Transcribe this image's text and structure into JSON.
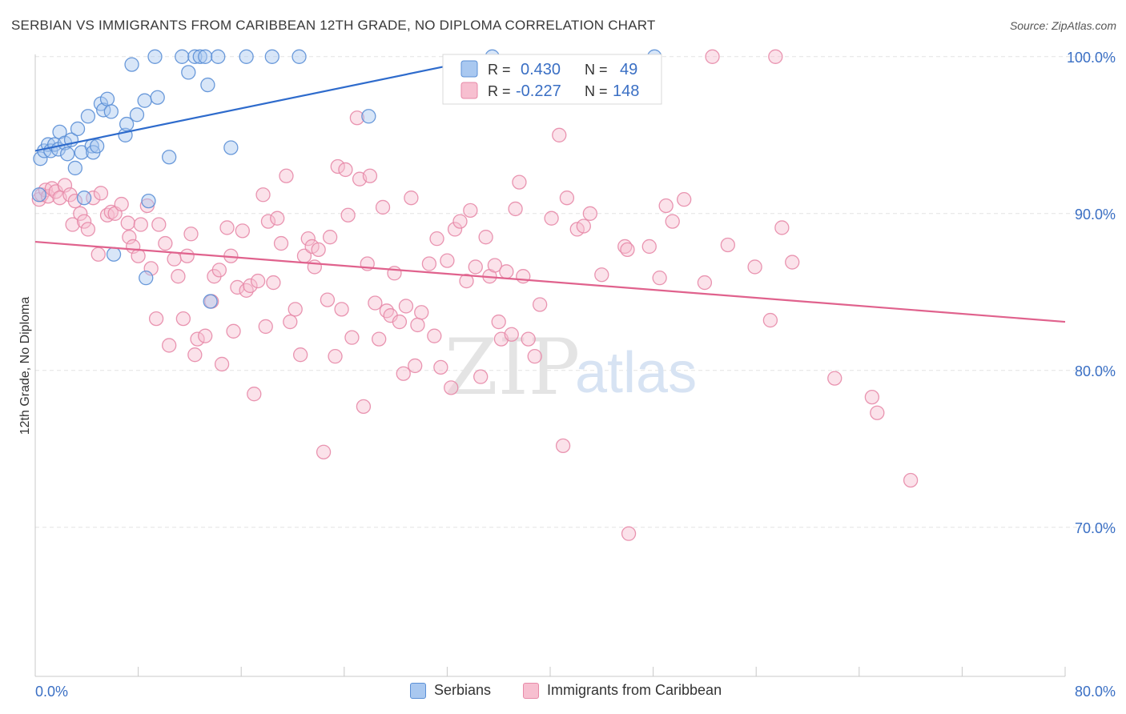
{
  "title": "SERBIAN VS IMMIGRANTS FROM CARIBBEAN 12TH GRADE, NO DIPLOMA CORRELATION CHART",
  "source": "Source: ZipAtlas.com",
  "watermark": {
    "zip": "ZIP",
    "atlas": "atlas"
  },
  "colors": {
    "serbians_fill": "#a9c8f0",
    "serbians_stroke": "#5b8fd6",
    "serbians_line": "#2e6bcc",
    "caribbean_fill": "#f7bfd0",
    "caribbean_stroke": "#e78aa8",
    "caribbean_line": "#e0628d",
    "value_text": "#3a6fc4",
    "grid": "#e3e3e3"
  },
  "legend_top": {
    "rows": [
      {
        "r_label": "R =",
        "r_value": "0.430",
        "n_label": "N =",
        "n_value": "49"
      },
      {
        "r_label": "R =",
        "r_value": "-0.227",
        "n_label": "N =",
        "n_value": "148"
      }
    ]
  },
  "legend_bottom": {
    "items": [
      "Serbians",
      "Immigrants from Caribbean"
    ]
  },
  "chart_data": {
    "type": "scatter",
    "title": "SERBIAN VS IMMIGRANTS FROM CARIBBEAN 12TH GRADE, NO DIPLOMA CORRELATION CHART",
    "xlabel": "",
    "ylabel": "12th Grade, No Diploma",
    "xlim": [
      0,
      80
    ],
    "ylim": [
      60.5,
      100.5
    ],
    "x_tick_labels": [
      "0.0%",
      "80.0%"
    ],
    "y_ticks": [
      70,
      80,
      90,
      100
    ],
    "y_tick_labels": [
      "70.0%",
      "80.0%",
      "90.0%",
      "100.0%"
    ],
    "grid": true,
    "legend_position": "top-center",
    "series": [
      {
        "name": "Serbians",
        "r": 0.43,
        "n": 49,
        "trend": {
          "x": [
            0,
            35.5
          ],
          "y": [
            94.0,
            100.0
          ]
        },
        "points": [
          {
            "x": 0.4,
            "y": 93.5
          },
          {
            "x": 0.7,
            "y": 94.0
          },
          {
            "x": 1.0,
            "y": 94.4
          },
          {
            "x": 1.2,
            "y": 94.0
          },
          {
            "x": 1.5,
            "y": 94.4
          },
          {
            "x": 1.8,
            "y": 94.1
          },
          {
            "x": 1.9,
            "y": 95.2
          },
          {
            "x": 2.3,
            "y": 94.5
          },
          {
            "x": 2.5,
            "y": 93.8
          },
          {
            "x": 2.8,
            "y": 94.7
          },
          {
            "x": 3.1,
            "y": 92.9
          },
          {
            "x": 3.3,
            "y": 95.4
          },
          {
            "x": 3.6,
            "y": 93.9
          },
          {
            "x": 4.1,
            "y": 96.2
          },
          {
            "x": 4.4,
            "y": 94.3
          },
          {
            "x": 4.5,
            "y": 93.9
          },
          {
            "x": 4.8,
            "y": 94.3
          },
          {
            "x": 5.1,
            "y": 97.0
          },
          {
            "x": 5.3,
            "y": 96.6
          },
          {
            "x": 5.6,
            "y": 97.3
          },
          {
            "x": 5.9,
            "y": 96.5
          },
          {
            "x": 6.1,
            "y": 87.4
          },
          {
            "x": 7.0,
            "y": 95.0
          },
          {
            "x": 7.1,
            "y": 95.7
          },
          {
            "x": 7.5,
            "y": 99.5
          },
          {
            "x": 7.9,
            "y": 96.3
          },
          {
            "x": 8.5,
            "y": 97.2
          },
          {
            "x": 8.6,
            "y": 85.9
          },
          {
            "x": 8.8,
            "y": 90.8
          },
          {
            "x": 9.5,
            "y": 97.4
          },
          {
            "x": 9.3,
            "y": 100.0
          },
          {
            "x": 10.4,
            "y": 93.6
          },
          {
            "x": 11.4,
            "y": 100.0
          },
          {
            "x": 11.9,
            "y": 99.0
          },
          {
            "x": 12.4,
            "y": 100.0
          },
          {
            "x": 12.8,
            "y": 100.0
          },
          {
            "x": 13.2,
            "y": 100.0
          },
          {
            "x": 13.6,
            "y": 84.4
          },
          {
            "x": 13.4,
            "y": 98.2
          },
          {
            "x": 14.2,
            "y": 100.0
          },
          {
            "x": 15.2,
            "y": 94.2
          },
          {
            "x": 16.4,
            "y": 100.0
          },
          {
            "x": 18.4,
            "y": 100.0
          },
          {
            "x": 20.5,
            "y": 100.0
          },
          {
            "x": 25.9,
            "y": 96.2
          },
          {
            "x": 35.5,
            "y": 100.0
          },
          {
            "x": 48.1,
            "y": 100.0
          },
          {
            "x": 0.3,
            "y": 91.2
          },
          {
            "x": 3.8,
            "y": 91.0
          }
        ]
      },
      {
        "name": "Immigrants from Caribbean",
        "r": -0.227,
        "n": 148,
        "trend": {
          "x": [
            0,
            80
          ],
          "y": [
            88.2,
            83.1
          ]
        },
        "points": [
          {
            "x": 0.3,
            "y": 90.9
          },
          {
            "x": 0.5,
            "y": 91.2
          },
          {
            "x": 0.8,
            "y": 91.5
          },
          {
            "x": 1.0,
            "y": 91.1
          },
          {
            "x": 1.3,
            "y": 91.6
          },
          {
            "x": 1.6,
            "y": 91.4
          },
          {
            "x": 1.9,
            "y": 91.0
          },
          {
            "x": 2.3,
            "y": 91.8
          },
          {
            "x": 2.7,
            "y": 91.2
          },
          {
            "x": 2.9,
            "y": 89.3
          },
          {
            "x": 3.1,
            "y": 90.8
          },
          {
            "x": 3.5,
            "y": 90.0
          },
          {
            "x": 3.8,
            "y": 89.5
          },
          {
            "x": 4.1,
            "y": 89.0
          },
          {
            "x": 4.5,
            "y": 91.0
          },
          {
            "x": 4.9,
            "y": 87.4
          },
          {
            "x": 5.1,
            "y": 91.3
          },
          {
            "x": 5.6,
            "y": 89.9
          },
          {
            "x": 5.9,
            "y": 90.1
          },
          {
            "x": 6.2,
            "y": 90.0
          },
          {
            "x": 6.7,
            "y": 90.6
          },
          {
            "x": 7.2,
            "y": 89.4
          },
          {
            "x": 7.3,
            "y": 88.5
          },
          {
            "x": 7.6,
            "y": 87.9
          },
          {
            "x": 8.0,
            "y": 87.3
          },
          {
            "x": 8.2,
            "y": 89.3
          },
          {
            "x": 8.7,
            "y": 90.5
          },
          {
            "x": 9.0,
            "y": 86.5
          },
          {
            "x": 9.4,
            "y": 83.3
          },
          {
            "x": 9.6,
            "y": 89.3
          },
          {
            "x": 10.1,
            "y": 88.1
          },
          {
            "x": 10.4,
            "y": 81.6
          },
          {
            "x": 10.8,
            "y": 87.1
          },
          {
            "x": 11.1,
            "y": 86.0
          },
          {
            "x": 11.5,
            "y": 83.3
          },
          {
            "x": 11.8,
            "y": 87.3
          },
          {
            "x": 12.1,
            "y": 88.7
          },
          {
            "x": 12.4,
            "y": 81.0
          },
          {
            "x": 12.6,
            "y": 82.0
          },
          {
            "x": 13.2,
            "y": 82.2
          },
          {
            "x": 13.7,
            "y": 84.4
          },
          {
            "x": 13.9,
            "y": 86.0
          },
          {
            "x": 14.3,
            "y": 86.4
          },
          {
            "x": 14.5,
            "y": 80.4
          },
          {
            "x": 14.9,
            "y": 89.1
          },
          {
            "x": 15.2,
            "y": 87.3
          },
          {
            "x": 15.4,
            "y": 82.5
          },
          {
            "x": 15.7,
            "y": 85.3
          },
          {
            "x": 16.1,
            "y": 88.9
          },
          {
            "x": 16.4,
            "y": 85.1
          },
          {
            "x": 16.7,
            "y": 85.4
          },
          {
            "x": 17.0,
            "y": 78.5
          },
          {
            "x": 17.3,
            "y": 85.7
          },
          {
            "x": 17.7,
            "y": 91.2
          },
          {
            "x": 17.9,
            "y": 82.8
          },
          {
            "x": 18.1,
            "y": 89.5
          },
          {
            "x": 18.5,
            "y": 85.6
          },
          {
            "x": 18.8,
            "y": 89.7
          },
          {
            "x": 19.1,
            "y": 88.1
          },
          {
            "x": 19.5,
            "y": 92.4
          },
          {
            "x": 19.8,
            "y": 83.1
          },
          {
            "x": 20.2,
            "y": 83.9
          },
          {
            "x": 20.6,
            "y": 81.0
          },
          {
            "x": 20.9,
            "y": 87.3
          },
          {
            "x": 21.2,
            "y": 88.4
          },
          {
            "x": 21.5,
            "y": 87.9
          },
          {
            "x": 21.7,
            "y": 86.6
          },
          {
            "x": 22.0,
            "y": 87.7
          },
          {
            "x": 22.4,
            "y": 74.8
          },
          {
            "x": 22.7,
            "y": 84.5
          },
          {
            "x": 22.9,
            "y": 88.5
          },
          {
            "x": 23.3,
            "y": 80.9
          },
          {
            "x": 23.5,
            "y": 93.0
          },
          {
            "x": 23.8,
            "y": 83.9
          },
          {
            "x": 24.1,
            "y": 92.8
          },
          {
            "x": 24.3,
            "y": 89.9
          },
          {
            "x": 24.6,
            "y": 82.1
          },
          {
            "x": 25.0,
            "y": 96.1
          },
          {
            "x": 25.2,
            "y": 92.2
          },
          {
            "x": 25.5,
            "y": 77.7
          },
          {
            "x": 25.8,
            "y": 86.8
          },
          {
            "x": 26.0,
            "y": 92.4
          },
          {
            "x": 26.4,
            "y": 84.3
          },
          {
            "x": 26.7,
            "y": 82.0
          },
          {
            "x": 27.0,
            "y": 90.4
          },
          {
            "x": 27.3,
            "y": 83.8
          },
          {
            "x": 27.6,
            "y": 83.5
          },
          {
            "x": 27.9,
            "y": 86.2
          },
          {
            "x": 28.3,
            "y": 83.1
          },
          {
            "x": 28.6,
            "y": 79.8
          },
          {
            "x": 28.8,
            "y": 84.1
          },
          {
            "x": 29.2,
            "y": 91.0
          },
          {
            "x": 29.5,
            "y": 80.3
          },
          {
            "x": 29.7,
            "y": 82.9
          },
          {
            "x": 30.0,
            "y": 83.7
          },
          {
            "x": 30.6,
            "y": 86.8
          },
          {
            "x": 31.0,
            "y": 82.2
          },
          {
            "x": 31.2,
            "y": 88.4
          },
          {
            "x": 31.5,
            "y": 80.2
          },
          {
            "x": 32.0,
            "y": 87.0
          },
          {
            "x": 32.3,
            "y": 78.9
          },
          {
            "x": 32.6,
            "y": 89.0
          },
          {
            "x": 33.0,
            "y": 89.5
          },
          {
            "x": 33.5,
            "y": 85.7
          },
          {
            "x": 33.8,
            "y": 90.2
          },
          {
            "x": 34.2,
            "y": 86.6
          },
          {
            "x": 34.6,
            "y": 79.6
          },
          {
            "x": 35.0,
            "y": 88.5
          },
          {
            "x": 35.3,
            "y": 86.0
          },
          {
            "x": 35.7,
            "y": 86.7
          },
          {
            "x": 36.0,
            "y": 83.1
          },
          {
            "x": 36.2,
            "y": 82.0
          },
          {
            "x": 36.6,
            "y": 86.3
          },
          {
            "x": 37.0,
            "y": 82.3
          },
          {
            "x": 37.3,
            "y": 90.3
          },
          {
            "x": 37.6,
            "y": 92.0
          },
          {
            "x": 37.9,
            "y": 86.0
          },
          {
            "x": 38.3,
            "y": 82.0
          },
          {
            "x": 38.8,
            "y": 80.9
          },
          {
            "x": 39.2,
            "y": 84.2
          },
          {
            "x": 40.1,
            "y": 89.7
          },
          {
            "x": 40.7,
            "y": 95.0
          },
          {
            "x": 41.0,
            "y": 75.2
          },
          {
            "x": 41.3,
            "y": 91.0
          },
          {
            "x": 42.1,
            "y": 89.0
          },
          {
            "x": 42.6,
            "y": 89.2
          },
          {
            "x": 43.1,
            "y": 90.0
          },
          {
            "x": 44.0,
            "y": 86.1
          },
          {
            "x": 45.8,
            "y": 87.9
          },
          {
            "x": 46.0,
            "y": 87.7
          },
          {
            "x": 46.1,
            "y": 69.6
          },
          {
            "x": 47.7,
            "y": 87.9
          },
          {
            "x": 48.5,
            "y": 85.9
          },
          {
            "x": 49.0,
            "y": 90.5
          },
          {
            "x": 49.5,
            "y": 89.5
          },
          {
            "x": 50.4,
            "y": 90.9
          },
          {
            "x": 52.0,
            "y": 85.6
          },
          {
            "x": 52.6,
            "y": 100.0
          },
          {
            "x": 53.8,
            "y": 88.0
          },
          {
            "x": 55.9,
            "y": 86.6
          },
          {
            "x": 57.1,
            "y": 83.2
          },
          {
            "x": 57.5,
            "y": 100.0
          },
          {
            "x": 58.0,
            "y": 89.1
          },
          {
            "x": 58.8,
            "y": 86.9
          },
          {
            "x": 62.1,
            "y": 79.5
          },
          {
            "x": 65.0,
            "y": 78.3
          },
          {
            "x": 65.4,
            "y": 77.3
          },
          {
            "x": 68.0,
            "y": 73.0
          }
        ]
      }
    ]
  }
}
